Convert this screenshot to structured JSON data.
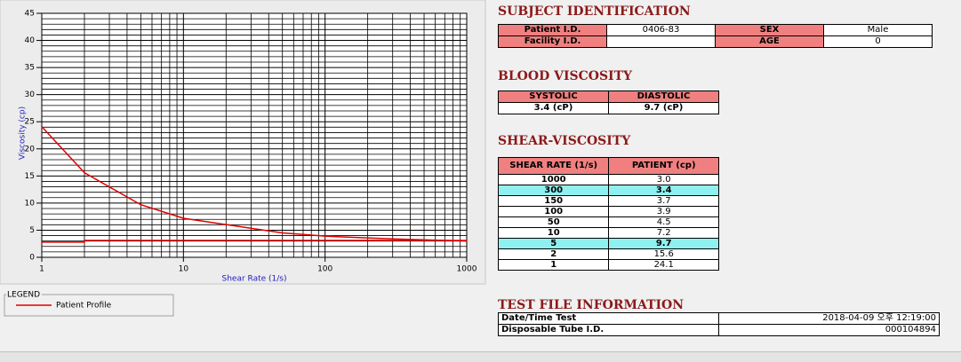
{
  "chart_data": {
    "type": "line",
    "xlabel": "Shear Rate (1/s)",
    "ylabel": "Viscosity (cp)",
    "xscale": "log",
    "xlim": [
      1,
      1000
    ],
    "xticks": [
      1,
      10,
      100,
      1000
    ],
    "ylim": [
      0,
      45
    ],
    "yticks": [
      0,
      5,
      10,
      15,
      20,
      25,
      30,
      35,
      40,
      45
    ],
    "grid": true,
    "minor_grid": true,
    "series": [
      {
        "name": "Patient Profile",
        "color": "#e00000",
        "x": [
          1,
          2,
          5,
          10,
          50,
          100,
          150,
          300,
          1000
        ],
        "values": [
          24.1,
          15.6,
          9.7,
          7.2,
          4.5,
          3.9,
          3.7,
          3.4,
          3.0
        ]
      },
      {
        "color": "#e00000",
        "x": [
          1,
          2,
          2,
          1000
        ],
        "values": [
          2.8,
          2.8,
          3.1,
          3.1
        ]
      }
    ],
    "legend_title": "LEGEND"
  },
  "subject": {
    "title": "SUBJECT IDENTIFICATION",
    "rows": [
      [
        "Patient I.D.",
        "0406-83",
        "SEX",
        "Male"
      ],
      [
        "Facility I.D.",
        null,
        "AGE",
        "0"
      ]
    ]
  },
  "blood": {
    "title": "BLOOD VISCOSITY",
    "headers": [
      "SYSTOLIC",
      "DIASTOLIC"
    ],
    "values": [
      "3.4 (cP)",
      "9.7 (cP)"
    ]
  },
  "shear": {
    "title": "SHEAR-VISCOSITY",
    "headers": [
      "SHEAR RATE (1/s)",
      "PATIENT (cp)"
    ],
    "rows": [
      [
        "1000",
        "3.0"
      ],
      [
        "300",
        "3.4"
      ],
      [
        "150",
        "3.7"
      ],
      [
        "100",
        "3.9"
      ],
      [
        "50",
        "4.5"
      ],
      [
        "10",
        "7.2"
      ],
      [
        "5",
        "9.7"
      ],
      [
        "2",
        "15.6"
      ],
      [
        "1",
        "24.1"
      ]
    ],
    "highlight_rows": [
      1,
      6
    ]
  },
  "testfile": {
    "title": "TEST FILE INFORMATION",
    "rows": [
      [
        "Date/Time Test",
        "2018-04-09  오후 12:19:00"
      ],
      [
        "Disposable Tube I.D.",
        "000104894"
      ]
    ]
  }
}
